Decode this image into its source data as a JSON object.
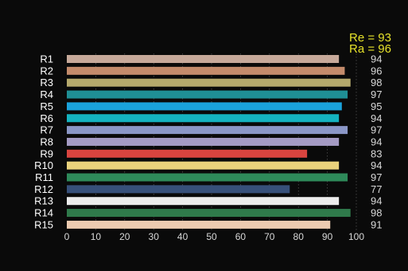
{
  "chart_data": {
    "type": "bar",
    "orientation": "horizontal",
    "summary": [
      {
        "label": "Re = 93"
      },
      {
        "label": "Ra = 96"
      }
    ],
    "categories": [
      "R1",
      "R2",
      "R3",
      "R4",
      "R5",
      "R6",
      "R7",
      "R8",
      "R9",
      "R10",
      "R11",
      "R12",
      "R13",
      "R14",
      "R15"
    ],
    "values": [
      94,
      96,
      98,
      97,
      95,
      94,
      97,
      94,
      83,
      94,
      97,
      77,
      94,
      98,
      91
    ],
    "value_labels": [
      "94",
      "96",
      "98",
      "97",
      "95",
      "94",
      "97",
      "94",
      "83",
      "94",
      "97",
      "77",
      "94",
      "98",
      "91"
    ],
    "colors": [
      "#c7a99a",
      "#c48b6b",
      "#b5a96c",
      "#1f8f95",
      "#1aa3dc",
      "#14b3c0",
      "#8b97c7",
      "#a59bc4",
      "#d9443f",
      "#ead27c",
      "#2e8a5a",
      "#37507a",
      "#ececec",
      "#2f7a4b",
      "#eccbb0"
    ],
    "xlim": [
      0,
      100
    ],
    "xticks": [
      0,
      10,
      20,
      30,
      40,
      50,
      60,
      70,
      80,
      90,
      100
    ],
    "xtick_labels": [
      "0",
      "10",
      "20",
      "30",
      "40",
      "50",
      "60",
      "70",
      "80",
      "90",
      "100"
    ],
    "grid": true,
    "title": "",
    "xlabel": "",
    "ylabel": ""
  }
}
